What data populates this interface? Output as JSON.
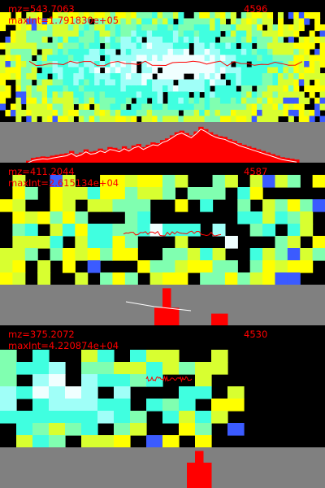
{
  "colors": {
    "background": "#000000",
    "histogram_background": "#808080",
    "text": "#ff0000",
    "line": "#ff0000",
    "histogram_fill": "#ff0000",
    "histogram_line": "#ffffff"
  },
  "panels": [
    {
      "mz_label": "mz=543.7063",
      "maxint_label": "maxInt=1.791830e+05",
      "count_label": "4596",
      "heatmap": {
        "columns": 62,
        "rows": 20,
        "profile": [
          0.15,
          0.18,
          0.22,
          0.26,
          0.3,
          0.34,
          0.38,
          0.42,
          0.46,
          0.5,
          0.53,
          0.56,
          0.58,
          0.6,
          0.62,
          0.64,
          0.66,
          0.68,
          0.7,
          0.72,
          0.74,
          0.76,
          0.78,
          0.8,
          0.82,
          0.84,
          0.86,
          0.88,
          0.9,
          0.92,
          0.94,
          0.96,
          0.98,
          1.0,
          0.98,
          0.96,
          0.94,
          0.92,
          0.9,
          0.88,
          0.86,
          0.84,
          0.8,
          0.76,
          0.72,
          0.68,
          0.64,
          0.6,
          0.56,
          0.52,
          0.48,
          0.44,
          0.4,
          0.36,
          0.32,
          0.28,
          0.25,
          0.22,
          0.2,
          0.18,
          0.16,
          0.15
        ],
        "band": [
          0.12,
          0.98
        ],
        "noise": 0.55,
        "line_y": 0.52,
        "line_span": [
          0.09,
          0.93
        ]
      },
      "histogram": [
        0.05,
        0.12,
        0.14,
        0.16,
        0.15,
        0.18,
        0.2,
        0.22,
        0.24,
        0.3,
        0.22,
        0.26,
        0.34,
        0.28,
        0.3,
        0.36,
        0.32,
        0.4,
        0.38,
        0.34,
        0.42,
        0.36,
        0.44,
        0.48,
        0.4,
        0.46,
        0.52,
        0.5,
        0.58,
        0.62,
        0.7,
        0.78,
        0.82,
        0.76,
        0.7,
        0.8,
        0.92,
        0.86,
        0.78,
        0.72,
        0.68,
        0.66,
        0.6,
        0.56,
        0.5,
        0.46,
        0.42,
        0.38,
        0.34,
        0.3,
        0.26,
        0.22,
        0.18,
        0.14,
        0.12,
        0.1,
        0.08
      ],
      "hist_span": [
        0.08,
        0.92
      ]
    },
    {
      "mz_label": "mz=411.2044",
      "maxint_label": "maxInt=2.615134e+04",
      "count_label": "4587",
      "heatmap": {
        "columns": 26,
        "rows": 10,
        "profile": [
          0.2,
          0.3,
          0.35,
          0.25,
          0.4,
          0.3,
          0.2,
          0.45,
          0.5,
          0.35,
          0.4,
          0.55,
          0.7,
          0.45,
          0.3,
          0.4,
          0.55,
          0.65,
          0.8,
          0.6,
          0.5,
          0.4,
          0.3,
          0.35,
          0.25,
          0.2
        ],
        "band": [
          0.1,
          0.95
        ],
        "noise": 0.8,
        "line_y": 0.58,
        "line_span": [
          0.38,
          0.68
        ]
      },
      "histogram": [
        0.0,
        0.0,
        0.0,
        0.0,
        0.0,
        0.0,
        0.0,
        0.0,
        0.0,
        0.0,
        0.0,
        0.0,
        0.0,
        0.0,
        0.0,
        0.0,
        0.0,
        0.0,
        0.0,
        0.45,
        0.95,
        0.45,
        0.0,
        0.0,
        0.0,
        0.0,
        0.3,
        0.3,
        0.0,
        0.0,
        0.0,
        0.0,
        0.0,
        0.0,
        0.0,
        0.0,
        0.0,
        0.0,
        0.0,
        0.0
      ],
      "hist_span": [
        0.0,
        1.0
      ]
    },
    {
      "mz_label": "mz=375.2072",
      "maxint_label": "maxInt=4.220874e+04",
      "count_label": "4530",
      "heatmap": {
        "columns": 20,
        "rows": 10,
        "profile": [
          0.55,
          0.6,
          0.7,
          0.85,
          0.9,
          0.8,
          0.7,
          0.65,
          0.6,
          0.55,
          0.5,
          0.45,
          0.4,
          0.3,
          0.2,
          0.0,
          0.0,
          0.0,
          0.0,
          0.0
        ],
        "band": [
          0.2,
          0.95
        ],
        "noise": 0.7,
        "line_y": 0.44,
        "line_span": [
          0.45,
          0.59
        ]
      },
      "histogram": [
        0.0,
        0.0,
        0.0,
        0.0,
        0.0,
        0.0,
        0.0,
        0.0,
        0.0,
        0.0,
        0.0,
        0.0,
        0.0,
        0.0,
        0.0,
        0.0,
        0.0,
        0.0,
        0.0,
        0.0,
        0.0,
        0.0,
        0.0,
        0.65,
        0.95,
        0.65,
        0.0,
        0.0,
        0.0,
        0.0,
        0.0,
        0.0,
        0.0,
        0.0,
        0.0,
        0.0,
        0.0,
        0.0,
        0.0,
        0.0
      ],
      "hist_span": [
        0.0,
        1.0
      ]
    }
  ]
}
